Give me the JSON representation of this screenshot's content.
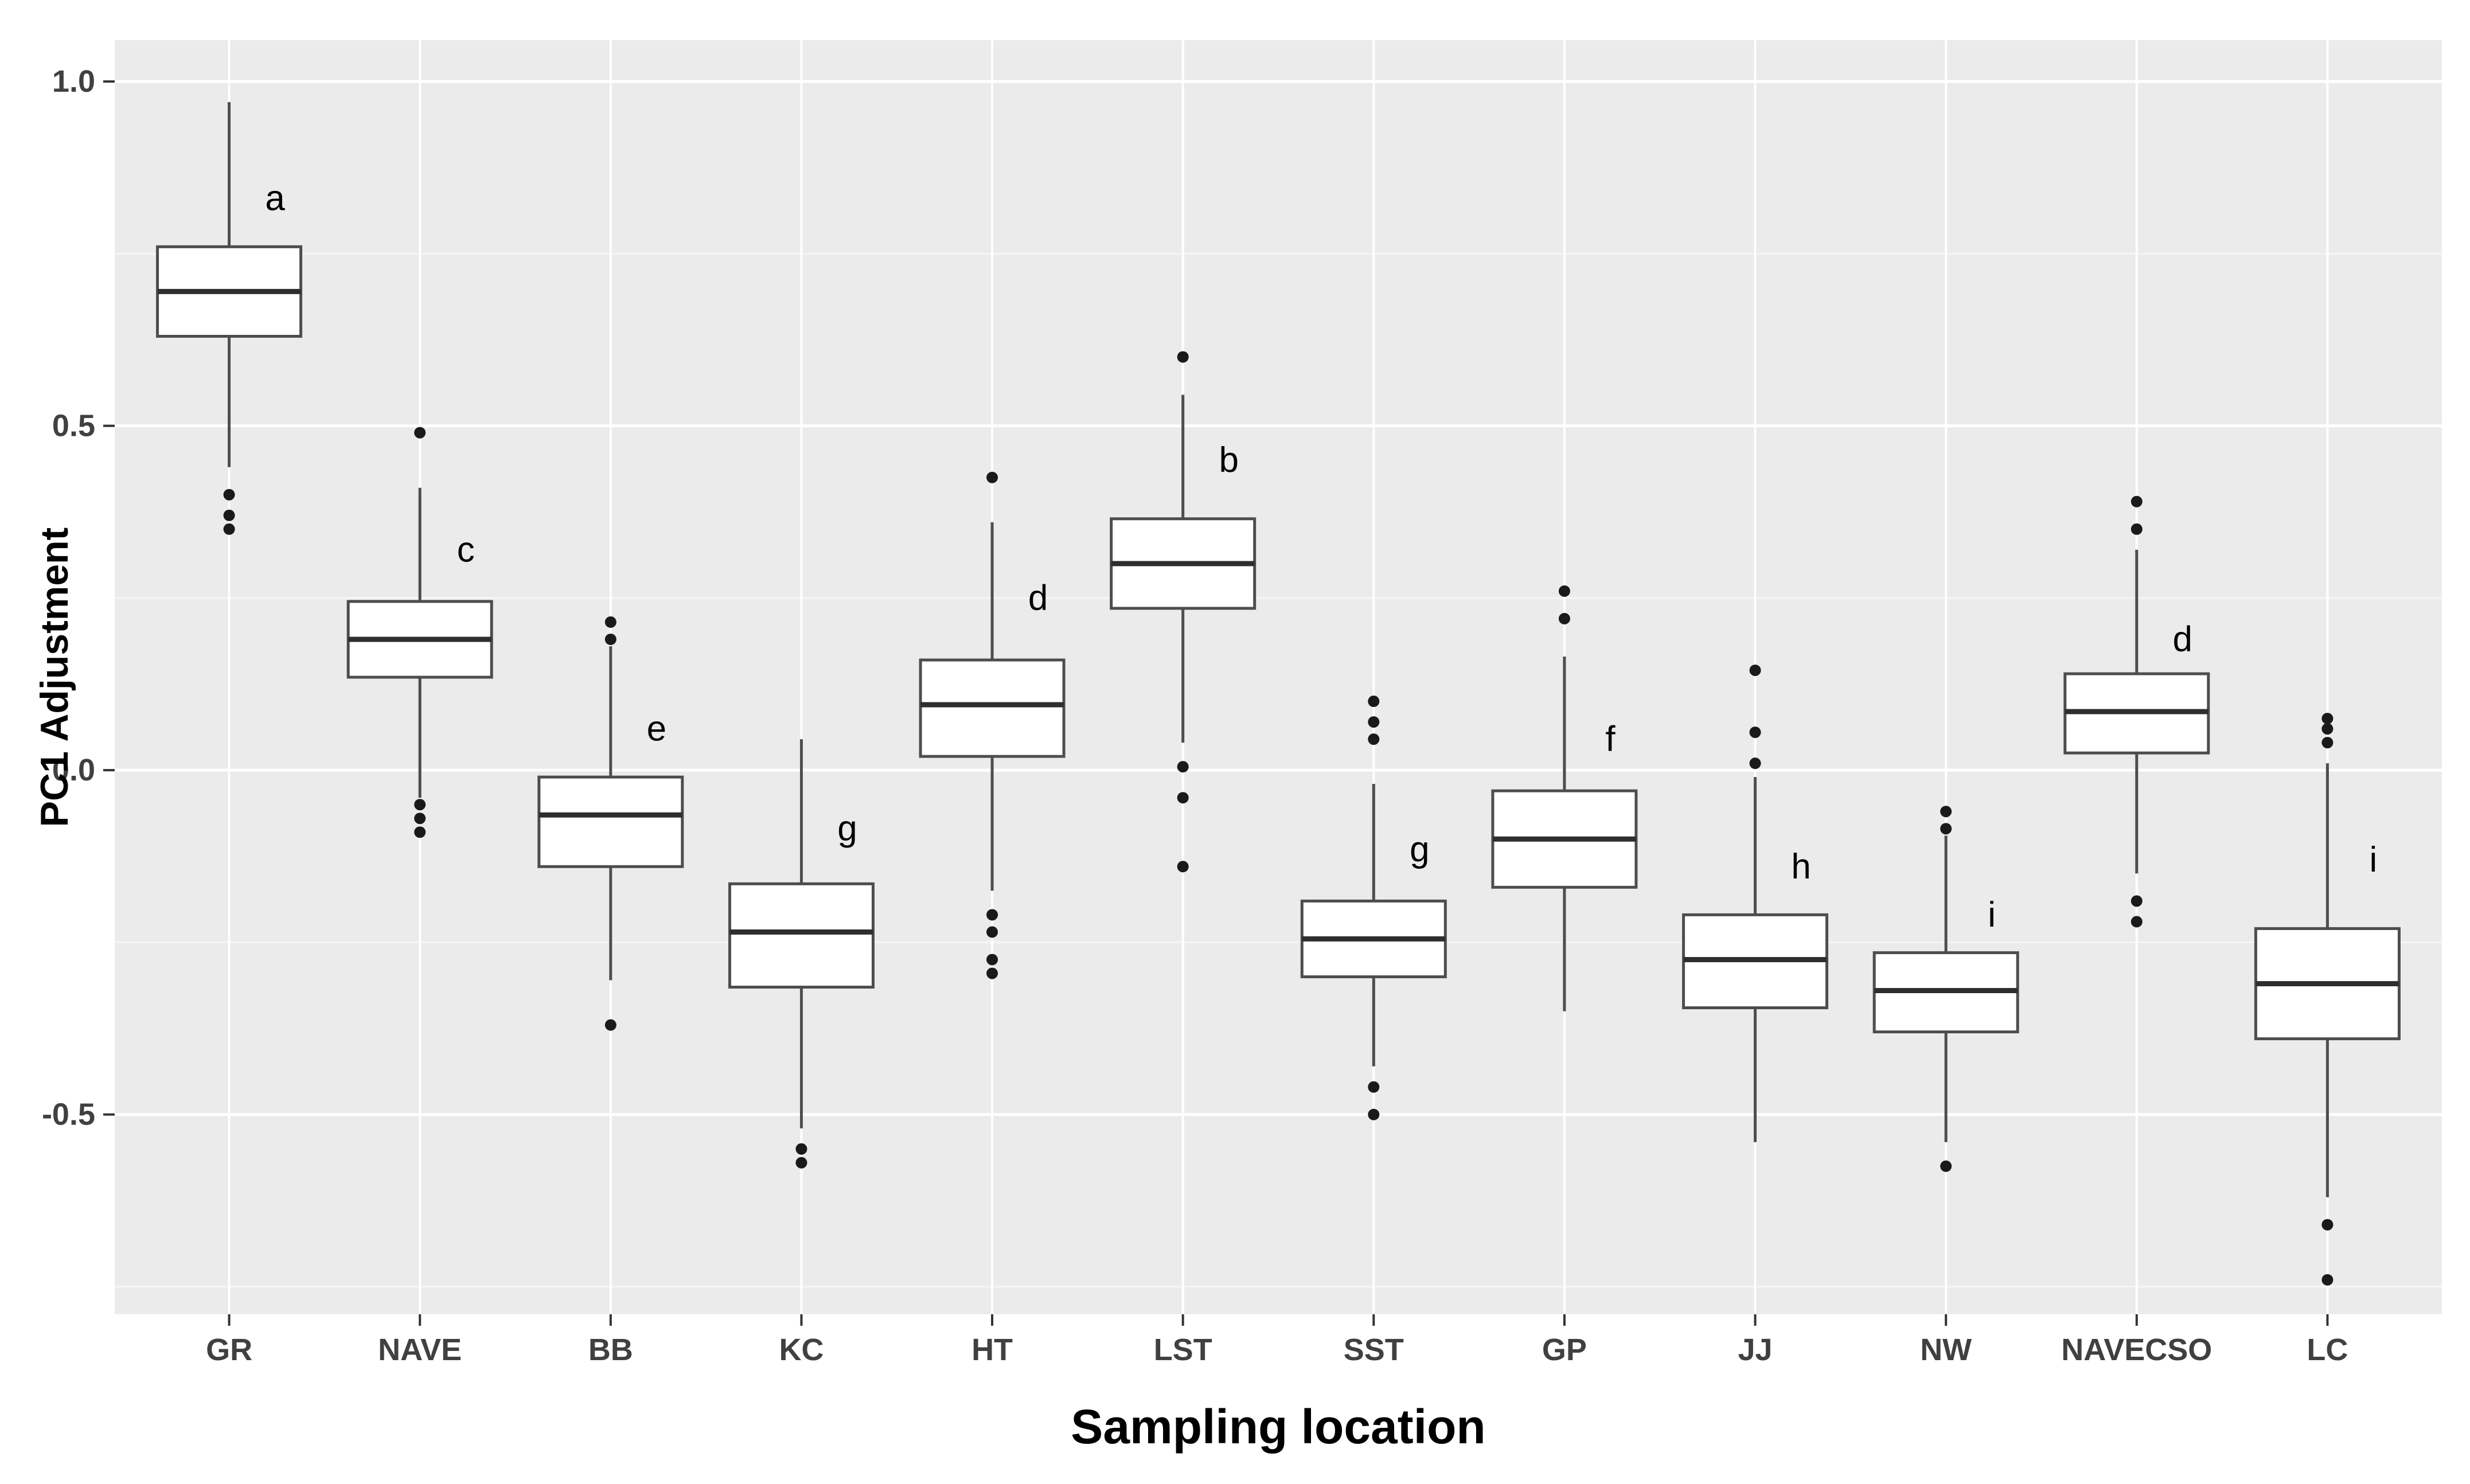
{
  "style": {
    "figure_bg": "#ffffff",
    "panel_bg": "#ebebeb",
    "grid_major_color": "#ffffff",
    "grid_minor_color": "#f6f6f6",
    "box_fill": "#ffffff",
    "box_stroke": "#4d4d4d",
    "median_color": "#2e2e2e",
    "outlier_color": "#1a1a1a",
    "tick_color": "#333333",
    "tick_label_color": "#404040",
    "text_color": "#000000"
  },
  "chart_data": {
    "type": "boxplot",
    "title": "",
    "xlabel": "Sampling location",
    "ylabel": "PC1 Adjustment",
    "legend": "none",
    "grid": true,
    "ylim": [
      -0.79,
      1.06
    ],
    "yticks": [
      {
        "value": 1.0,
        "label": "1.0"
      },
      {
        "value": 0.5,
        "label": "0.5"
      },
      {
        "value": 0.0,
        "label": "0.0"
      },
      {
        "value": -0.5,
        "label": "-0.5"
      }
    ],
    "minor_yticks": [
      0.75,
      0.25,
      -0.25,
      -0.75
    ],
    "categories": [
      "GR",
      "NAVE",
      "BB",
      "KC",
      "HT",
      "LST",
      "SST",
      "GP",
      "JJ",
      "NW",
      "NAVECSO",
      "LC"
    ],
    "boxes": [
      {
        "category": "GR",
        "letter": "a",
        "letter_value": 0.83,
        "whisker_high": 0.97,
        "q3": 0.76,
        "median": 0.695,
        "q1": 0.63,
        "whisker_low": 0.44,
        "outliers": [
          0.4,
          0.37,
          0.35
        ]
      },
      {
        "category": "NAVE",
        "letter": "c",
        "letter_value": 0.32,
        "whisker_high": 0.41,
        "q3": 0.245,
        "median": 0.19,
        "q1": 0.135,
        "whisker_low": -0.04,
        "outliers": [
          0.49,
          -0.05,
          -0.07,
          -0.09
        ]
      },
      {
        "category": "BB",
        "letter": "e",
        "letter_value": 0.06,
        "whisker_high": 0.18,
        "q3": -0.01,
        "median": -0.065,
        "q1": -0.14,
        "whisker_low": -0.305,
        "outliers": [
          0.215,
          0.19,
          -0.37
        ]
      },
      {
        "category": "KC",
        "letter": "g",
        "letter_value": -0.085,
        "whisker_high": 0.045,
        "q3": -0.165,
        "median": -0.235,
        "q1": -0.315,
        "whisker_low": -0.52,
        "outliers": [
          -0.55,
          -0.57
        ]
      },
      {
        "category": "HT",
        "letter": "d",
        "letter_value": 0.25,
        "whisker_high": 0.36,
        "q3": 0.16,
        "median": 0.095,
        "q1": 0.02,
        "whisker_low": -0.175,
        "outliers": [
          0.425,
          -0.21,
          -0.235,
          -0.275,
          -0.295
        ]
      },
      {
        "category": "LST",
        "letter": "b",
        "letter_value": 0.45,
        "whisker_high": 0.545,
        "q3": 0.365,
        "median": 0.3,
        "q1": 0.235,
        "whisker_low": 0.04,
        "outliers": [
          0.6,
          0.005,
          -0.04,
          -0.14
        ]
      },
      {
        "category": "SST",
        "letter": "g",
        "letter_value": -0.115,
        "whisker_high": -0.02,
        "q3": -0.19,
        "median": -0.245,
        "q1": -0.3,
        "whisker_low": -0.43,
        "outliers": [
          0.1,
          0.07,
          0.045,
          -0.46,
          -0.5
        ]
      },
      {
        "category": "GP",
        "letter": "f",
        "letter_value": 0.045,
        "whisker_high": 0.165,
        "q3": -0.03,
        "median": -0.1,
        "q1": -0.17,
        "whisker_low": -0.35,
        "outliers": [
          0.26,
          0.22
        ]
      },
      {
        "category": "JJ",
        "letter": "h",
        "letter_value": -0.14,
        "whisker_high": -0.01,
        "q3": -0.21,
        "median": -0.275,
        "q1": -0.345,
        "whisker_low": -0.54,
        "outliers": [
          0.145,
          0.055,
          0.01
        ]
      },
      {
        "category": "NW",
        "letter": "i",
        "letter_value": -0.21,
        "whisker_high": -0.095,
        "q3": -0.265,
        "median": -0.32,
        "q1": -0.38,
        "whisker_low": -0.54,
        "outliers": [
          -0.06,
          -0.085,
          -0.575
        ]
      },
      {
        "category": "NAVECSO",
        "letter": "d",
        "letter_value": 0.19,
        "whisker_high": 0.32,
        "q3": 0.14,
        "median": 0.085,
        "q1": 0.025,
        "whisker_low": -0.15,
        "outliers": [
          0.39,
          0.35,
          -0.19,
          -0.22
        ]
      },
      {
        "category": "LC",
        "letter": "i",
        "letter_value": -0.13,
        "whisker_high": 0.01,
        "q3": -0.23,
        "median": -0.31,
        "q1": -0.39,
        "whisker_low": -0.62,
        "outliers": [
          0.075,
          0.06,
          0.04,
          -0.66,
          -0.74
        ]
      }
    ]
  }
}
